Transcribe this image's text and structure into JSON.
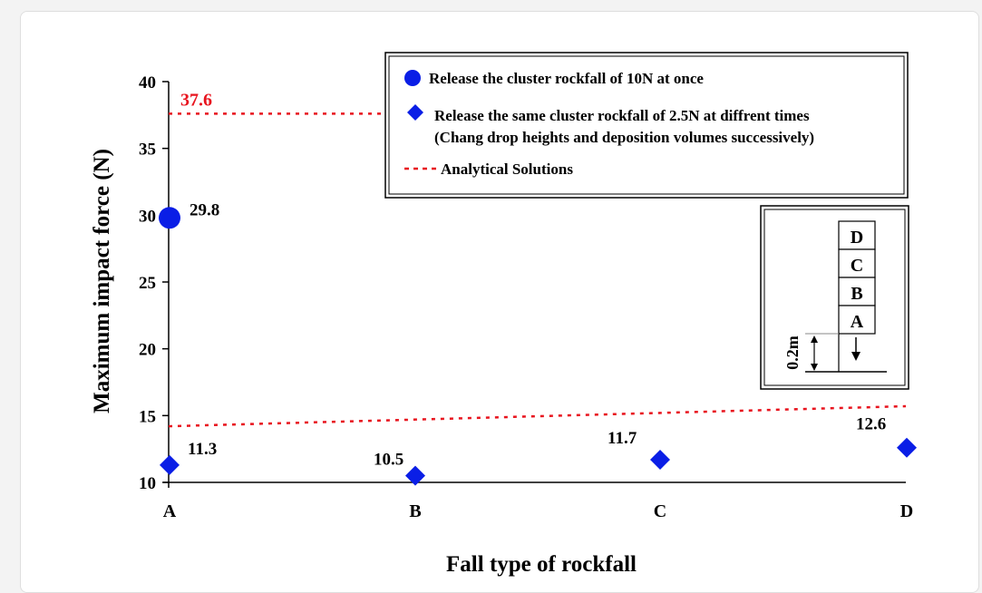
{
  "chart_data": {
    "type": "scatter",
    "xlabel": "Fall type of rockfall",
    "ylabel": "Maximum impact force (N)",
    "categories": [
      "A",
      "B",
      "C",
      "D"
    ],
    "ylim": [
      10,
      40
    ],
    "yticks": [
      10,
      15,
      20,
      25,
      30,
      35,
      40
    ],
    "grid": false,
    "legend_position": "top-right",
    "series": [
      {
        "name": "Release the cluster rockfall of 10N at once",
        "marker": "circle",
        "color": "#0a1ee6",
        "points": [
          {
            "x": "A",
            "y": 29.8,
            "label": "29.8"
          }
        ]
      },
      {
        "name": "Release the same cluster rockfall of 2.5N at diffrent times",
        "name_line2": "(Chang drop heights and deposition volumes successively)",
        "marker": "diamond",
        "color": "#0a1ee6",
        "points": [
          {
            "x": "A",
            "y": 11.3,
            "label": "11.3"
          },
          {
            "x": "B",
            "y": 10.5,
            "label": "10.5"
          },
          {
            "x": "C",
            "y": 11.7,
            "label": "11.7"
          },
          {
            "x": "D",
            "y": 12.6,
            "label": "12.6"
          }
        ]
      },
      {
        "name": "Analytical Solutions",
        "style": "dashed",
        "color": "#e8141e",
        "lines": [
          {
            "from": {
              "x": "A",
              "y": 37.6
            },
            "to": {
              "x": "A",
              "y": 37.6
            },
            "label": "37.6"
          },
          {
            "from": {
              "x": "A",
              "y": 14.2
            },
            "to": {
              "x": "D",
              "y": 15.7
            }
          }
        ]
      }
    ],
    "inset": {
      "blocks": [
        "D",
        "C",
        "B",
        "A"
      ],
      "height_label": "0.2m"
    }
  }
}
